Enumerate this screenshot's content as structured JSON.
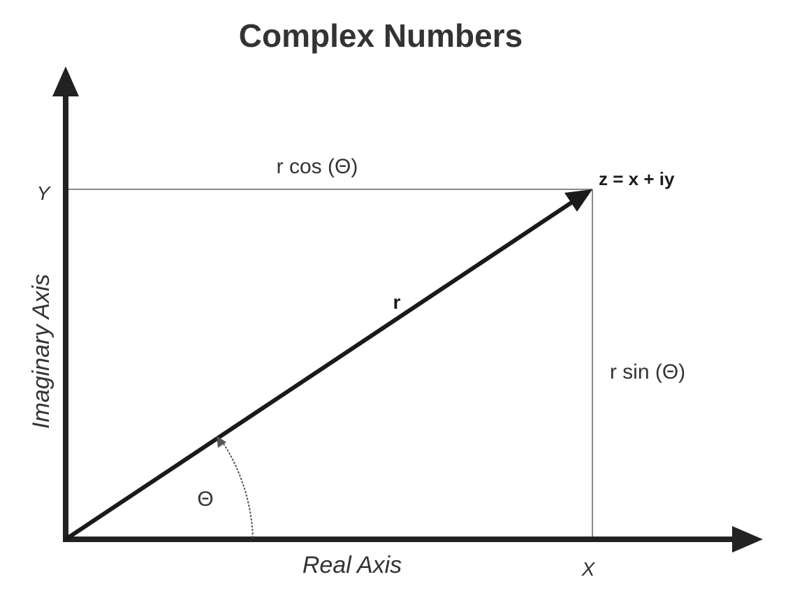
{
  "title": "Complex Numbers",
  "axes": {
    "x_label": "Real Axis",
    "y_label": "Imaginary Axis"
  },
  "points": {
    "x_tick": "X",
    "y_tick": "Y",
    "z_label": "z = x + iy"
  },
  "labels": {
    "r": "r",
    "r_cos": "r cos (Θ)",
    "r_sin": "r sin (Θ)",
    "theta": "Θ"
  },
  "colors": {
    "axis": "#222222",
    "vector": "#1a1a1a",
    "guide": "#888888",
    "text": "#333333"
  }
}
